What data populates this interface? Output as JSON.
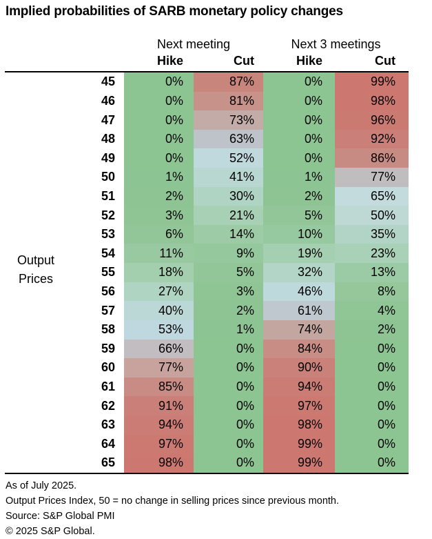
{
  "title": "Implied probabilities of SARB monetary policy changes",
  "chart_data": {
    "type": "heatmap",
    "title": "Implied probabilities of SARB monetary policy changes",
    "row_axis_label": "Output Prices",
    "column_groups": [
      "Next meeting",
      "Next 3 meetings"
    ],
    "col_headers": [
      "Hike",
      "Cut",
      "Hike",
      "Cut"
    ],
    "value_suffix": "%",
    "row_categories": [
      45,
      46,
      47,
      48,
      49,
      50,
      51,
      52,
      53,
      54,
      55,
      56,
      57,
      58,
      59,
      60,
      61,
      62,
      63,
      64,
      65
    ],
    "values": [
      [
        0,
        87,
        0,
        99
      ],
      [
        0,
        81,
        0,
        98
      ],
      [
        0,
        73,
        0,
        96
      ],
      [
        0,
        63,
        0,
        92
      ],
      [
        0,
        52,
        0,
        86
      ],
      [
        1,
        41,
        1,
        77
      ],
      [
        2,
        30,
        2,
        65
      ],
      [
        3,
        21,
        5,
        50
      ],
      [
        6,
        14,
        10,
        35
      ],
      [
        11,
        9,
        19,
        23
      ],
      [
        18,
        5,
        32,
        13
      ],
      [
        27,
        3,
        46,
        8
      ],
      [
        40,
        2,
        61,
        4
      ],
      [
        53,
        1,
        74,
        2
      ],
      [
        66,
        0,
        84,
        0
      ],
      [
        77,
        0,
        90,
        0
      ],
      [
        85,
        0,
        94,
        0
      ],
      [
        91,
        0,
        97,
        0
      ],
      [
        94,
        0,
        98,
        0
      ],
      [
        97,
        0,
        99,
        0
      ],
      [
        98,
        0,
        99,
        0
      ]
    ],
    "cell_colors": [
      [
        "#8CC492",
        "#C8857C",
        "#8CC492",
        "#CC7770"
      ],
      [
        "#8CC492",
        "#C7928A",
        "#8CC492",
        "#CC7870"
      ],
      [
        "#8CC492",
        "#C3ACA7",
        "#8CC492",
        "#CB7A72"
      ],
      [
        "#8CC492",
        "#BDC3C8",
        "#8CC492",
        "#CA8078"
      ],
      [
        "#8CC492",
        "#BFD9DD",
        "#8CC492",
        "#C88B83"
      ],
      [
        "#8DC493",
        "#B8D7D1",
        "#8DC493",
        "#C0BDBE"
      ],
      [
        "#8EC494",
        "#B0D4C4",
        "#8EC494",
        "#C3DBDD"
      ],
      [
        "#8FC595",
        "#A7D0B4",
        "#92C698",
        "#BED9D3"
      ],
      [
        "#92C699",
        "#9CCBA6",
        "#97C9A0",
        "#B2D4C7"
      ],
      [
        "#98C9A1",
        "#96C89D",
        "#A5CFB1",
        "#A8D1B7"
      ],
      [
        "#A4CFAF",
        "#92C698",
        "#B2D5C8",
        "#9BCBA5"
      ],
      [
        "#AFD4C2",
        "#8FC595",
        "#BED9DB",
        "#95C79B"
      ],
      [
        "#BCD8D6",
        "#8EC494",
        "#BFC8CF",
        "#90C596"
      ],
      [
        "#BFD7DE",
        "#8DC493",
        "#C4A6A1",
        "#8EC494"
      ],
      [
        "#C1BDC0",
        "#8CC492",
        "#C88E86",
        "#8CC492"
      ],
      [
        "#C8A39D",
        "#8CC492",
        "#CA8179",
        "#8CC492"
      ],
      [
        "#C98C84",
        "#8CC492",
        "#CB7C74",
        "#8CC492"
      ],
      [
        "#CA8078",
        "#8CC492",
        "#CB7971",
        "#8CC492"
      ],
      [
        "#CB7C74",
        "#8CC492",
        "#CC7870",
        "#8CC492"
      ],
      [
        "#CB7971",
        "#8CC492",
        "#CC7770",
        "#8CC492"
      ],
      [
        "#CC7870",
        "#8CC492",
        "#CC7770",
        "#8CC492"
      ]
    ],
    "colorscale": {
      "low": "#8CC492",
      "mid": "#C0DADC",
      "high": "#CC7770"
    },
    "layout": {
      "grid": false,
      "legend": false
    }
  },
  "footer": {
    "lines": [
      "As of July 2025.",
      "Output Prices Index, 50 = no change in selling prices since previous month.",
      "Source: S&P Global PMI",
      "© 2025 S&P Global."
    ]
  }
}
